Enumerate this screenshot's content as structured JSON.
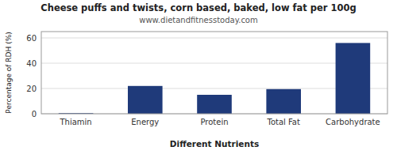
{
  "chart_data": {
    "type": "bar",
    "title": "Cheese puffs and twists, corn based, baked, low fat per 100g",
    "subtitle": "www.dietandfitnesstoday.com",
    "xlabel": "Different Nutrients",
    "ylabel": "Percentage of RDH (%)",
    "categories": [
      "Thiamin",
      "Energy",
      "Protein",
      "Total Fat",
      "Carbohydrate"
    ],
    "values": [
      0.5,
      22,
      15,
      19.5,
      56
    ],
    "color": "#1f3a7a",
    "ylim": [
      0,
      65
    ],
    "yticks": [
      0,
      20,
      40,
      60
    ],
    "grid": true
  }
}
